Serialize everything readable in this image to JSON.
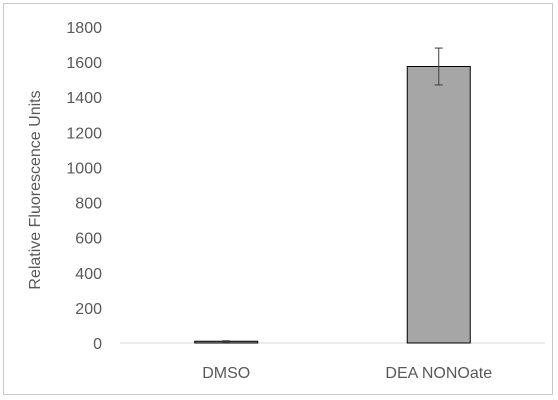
{
  "chart_data": {
    "type": "bar",
    "categories": [
      "DMSO",
      "DEA NONOate"
    ],
    "values": [
      10,
      1575
    ],
    "error": [
      3,
      105
    ],
    "title": "",
    "xlabel": "",
    "ylabel": "Relative Fluorescence Units",
    "ylim": [
      0,
      1800
    ],
    "yticks": [
      0,
      200,
      400,
      600,
      800,
      1000,
      1200,
      1400,
      1600,
      1800
    ],
    "grid": false,
    "legend": "none",
    "bar_color": "#a6a6a6",
    "bar_edge_color": "#000000",
    "axis_color": "#d9d9d9",
    "text_color": "#595959"
  }
}
